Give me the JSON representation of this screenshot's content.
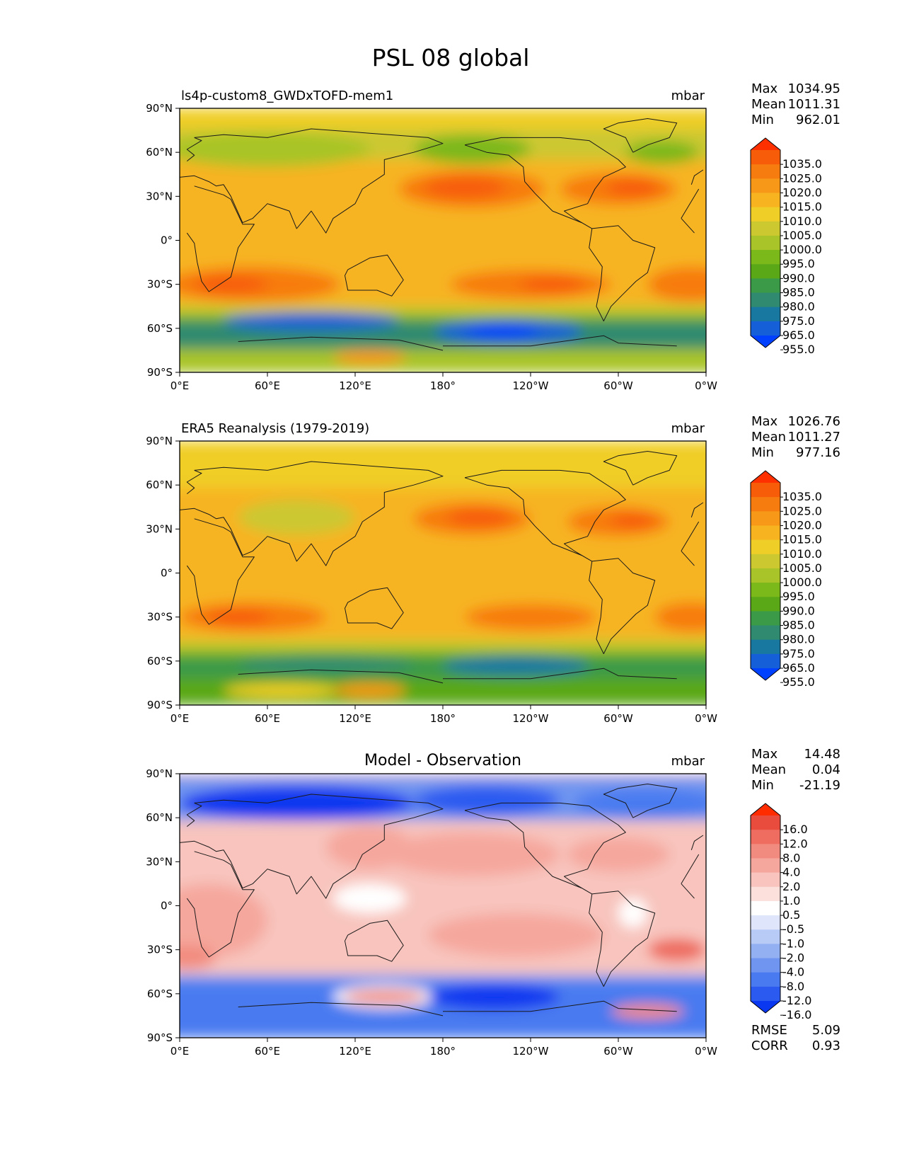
{
  "figure_title": "PSL 08 global",
  "axis_ticks": {
    "lat": [
      "90°N",
      "60°N",
      "30°N",
      "0°",
      "30°S",
      "60°S",
      "90°S"
    ],
    "lon": [
      "0°E",
      "60°E",
      "120°E",
      "180°",
      "120°W",
      "60°W",
      "0°W"
    ]
  },
  "colors": {
    "psl_scale": [
      "#0040ff",
      "#1560d8",
      "#1878a0",
      "#2f8a70",
      "#3a9a48",
      "#5aa818",
      "#7bb81a",
      "#a8c428",
      "#ccc830",
      "#f0ce28",
      "#f7b420",
      "#f79818",
      "#f77c10",
      "#f75c08",
      "#ff3000"
    ],
    "diff_scale": [
      "#0a38f0",
      "#2a5af0",
      "#4a7af0",
      "#6f95f0",
      "#93b0f2",
      "#b8caf6",
      "#dfe5fa",
      "#ffffff",
      "#fbe0dc",
      "#f8c4bd",
      "#f5a79d",
      "#f28b7f",
      "#ee6d60",
      "#e94b3c",
      "#ff2c00"
    ]
  },
  "chart_data": [
    {
      "type": "heatmap",
      "title": "ls4p-custom8_GWDxTOFD-mem1",
      "units": "mbar",
      "stats": {
        "max_label": "Max",
        "max": "1034.95",
        "mean_label": "Mean",
        "mean": "1011.31",
        "min_label": "Min",
        "min": "962.01"
      },
      "colorbar_ticks": [
        "1035.0",
        "1025.0",
        "1020.0",
        "1015.0",
        "1010.0",
        "1005.0",
        "1000.0",
        "995.0",
        "990.0",
        "985.0",
        "980.0",
        "975.0",
        "965.0",
        "955.0"
      ],
      "xlim": [
        0,
        360
      ],
      "ylim": [
        -90,
        90
      ]
    },
    {
      "type": "heatmap",
      "title": "ERA5 Reanalysis (1979-2019)",
      "units": "mbar",
      "stats": {
        "max_label": "Max",
        "max": "1026.76",
        "mean_label": "Mean",
        "mean": "1011.27",
        "min_label": "Min",
        "min": "977.16"
      },
      "colorbar_ticks": [
        "1035.0",
        "1025.0",
        "1020.0",
        "1015.0",
        "1010.0",
        "1005.0",
        "1000.0",
        "995.0",
        "990.0",
        "985.0",
        "980.0",
        "975.0",
        "965.0",
        "955.0"
      ],
      "xlim": [
        0,
        360
      ],
      "ylim": [
        -90,
        90
      ]
    },
    {
      "type": "heatmap",
      "title": "Model - Observation",
      "units": "mbar",
      "stats": {
        "max_label": "Max",
        "max": "14.48",
        "mean_label": "Mean",
        "mean": "0.04",
        "min_label": "Min",
        "min": "-21.19"
      },
      "colorbar_ticks": [
        "16.0",
        "12.0",
        "8.0",
        "4.0",
        "2.0",
        "1.0",
        "0.5",
        "-0.5",
        "-1.0",
        "-2.0",
        "-4.0",
        "-8.0",
        "-12.0",
        "-16.0"
      ],
      "metrics": [
        {
          "label": "RMSE",
          "value": "5.09"
        },
        {
          "label": "CORR",
          "value": "0.93"
        }
      ],
      "xlim": [
        0,
        360
      ],
      "ylim": [
        -90,
        90
      ]
    }
  ]
}
